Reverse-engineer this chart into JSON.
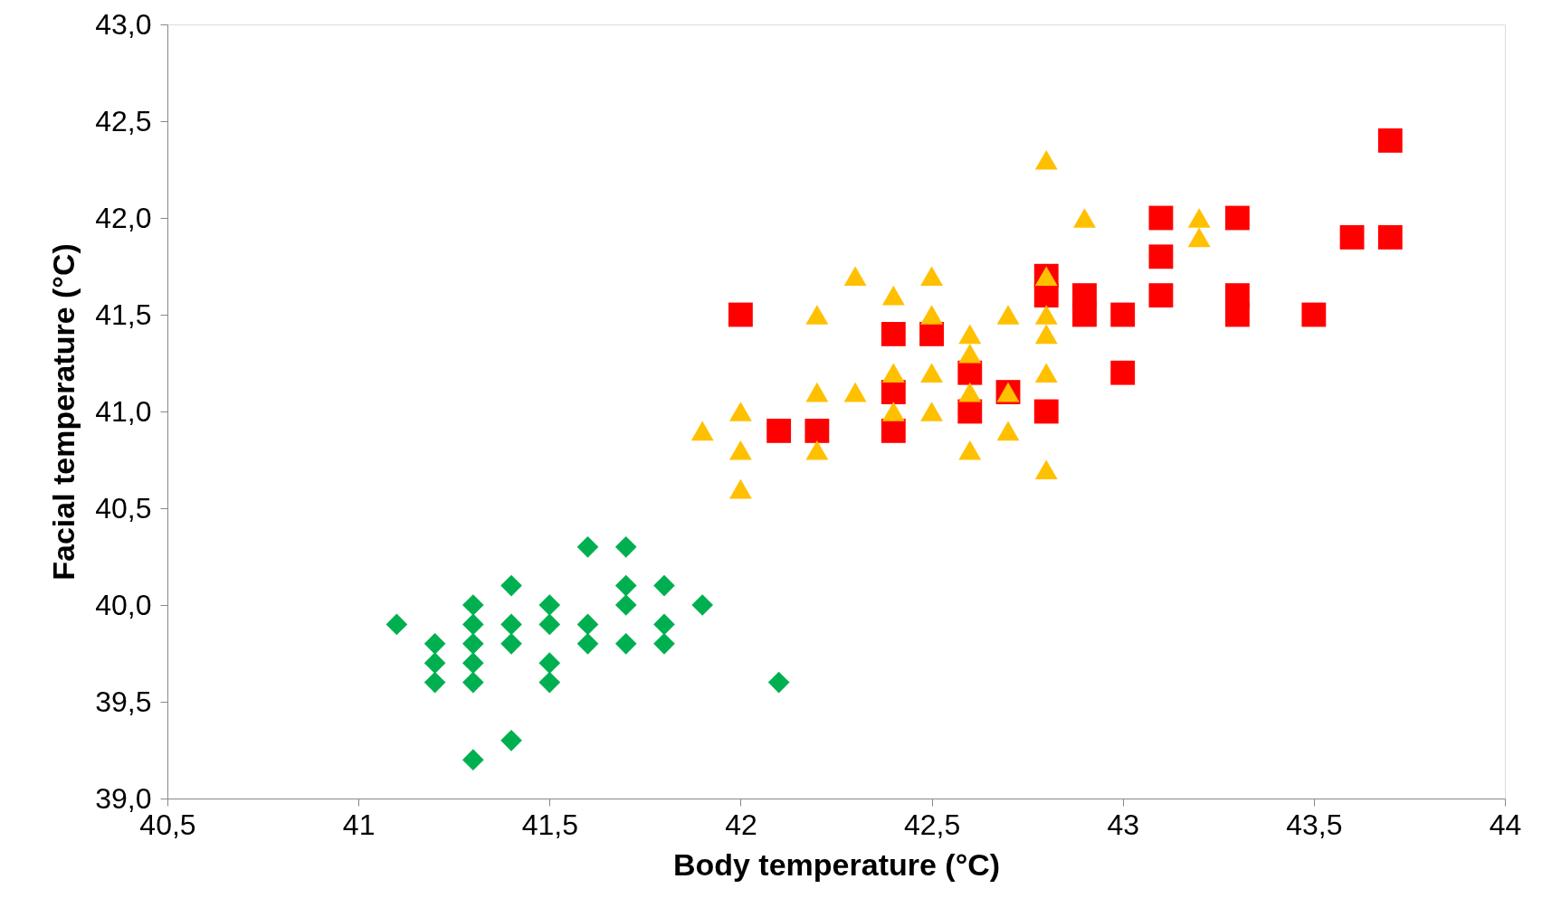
{
  "chart_data": {
    "type": "scatter",
    "xlabel": "Body temperature (°C)",
    "ylabel": "Facial temperature (°C)",
    "xlim": [
      40.5,
      44
    ],
    "ylim": [
      39.0,
      43.0
    ],
    "xticks": [
      {
        "value": 40.5,
        "label": "40,5"
      },
      41,
      {
        "value": 41.5,
        "label": "41,5"
      },
      42,
      {
        "value": 42.5,
        "label": "42,5"
      },
      43,
      {
        "value": 43.5,
        "label": "43,5"
      },
      44
    ],
    "yticks": [
      {
        "value": 39.0,
        "label": "39,0"
      },
      {
        "value": 39.5,
        "label": "39,5"
      },
      {
        "value": 40.0,
        "label": "40,0"
      },
      {
        "value": 40.5,
        "label": "40,5"
      },
      {
        "value": 41.0,
        "label": "41,0"
      },
      {
        "value": 41.5,
        "label": "41,5"
      },
      {
        "value": 42.0,
        "label": "42,0"
      },
      {
        "value": 42.5,
        "label": "42,5"
      },
      {
        "value": 43.0,
        "label": "43,0"
      }
    ],
    "grid": false,
    "series": [
      {
        "color": "#00b050",
        "marker": "diamond",
        "x": [
          41.1,
          41.2,
          41.2,
          41.2,
          41.3,
          41.3,
          41.3,
          41.3,
          41.3,
          41.3,
          41.4,
          41.4,
          41.4,
          41.4,
          41.5,
          41.5,
          41.5,
          41.5,
          41.6,
          41.6,
          41.6,
          41.7,
          41.7,
          41.7,
          41.7,
          41.8,
          41.8,
          41.8,
          41.9,
          42.1
        ],
        "values": [
          39.9,
          39.8,
          39.7,
          39.6,
          40.0,
          39.9,
          39.8,
          39.7,
          39.6,
          39.2,
          40.1,
          39.9,
          39.8,
          39.3,
          40.0,
          39.9,
          39.7,
          39.6,
          40.3,
          39.9,
          39.8,
          40.3,
          40.1,
          40.0,
          39.8,
          40.1,
          39.9,
          39.8,
          40.0,
          39.6
        ]
      },
      {
        "color": "#ff0000",
        "marker": "square",
        "x": [
          42.0,
          42.1,
          42.2,
          42.4,
          42.4,
          42.4,
          42.5,
          42.6,
          42.6,
          42.7,
          42.8,
          42.8,
          42.8,
          42.9,
          42.9,
          43.0,
          43.0,
          43.1,
          43.1,
          43.1,
          43.3,
          43.3,
          43.3,
          43.5,
          43.6,
          43.7,
          43.7
        ],
        "values": [
          41.5,
          40.9,
          40.9,
          41.4,
          41.1,
          40.9,
          41.4,
          41.2,
          41.0,
          41.1,
          41.7,
          41.6,
          41.0,
          41.6,
          41.5,
          41.5,
          41.2,
          42.0,
          41.8,
          41.6,
          42.0,
          41.6,
          41.5,
          41.5,
          41.9,
          42.4,
          41.9
        ]
      },
      {
        "color": "#ffc000",
        "marker": "triangle",
        "x": [
          41.9,
          42.0,
          42.0,
          42.0,
          42.2,
          42.2,
          42.2,
          42.3,
          42.3,
          42.4,
          42.4,
          42.4,
          42.5,
          42.5,
          42.5,
          42.5,
          42.6,
          42.6,
          42.6,
          42.6,
          42.7,
          42.7,
          42.7,
          42.8,
          42.8,
          42.8,
          42.8,
          42.8,
          42.8,
          42.9,
          43.2,
          43.2
        ],
        "values": [
          40.9,
          41.0,
          40.8,
          40.6,
          41.5,
          41.1,
          40.8,
          41.7,
          41.1,
          41.6,
          41.2,
          41.0,
          41.7,
          41.5,
          41.2,
          41.0,
          41.4,
          41.3,
          41.1,
          40.8,
          41.5,
          41.1,
          40.9,
          42.3,
          41.7,
          41.5,
          41.4,
          41.2,
          40.7,
          42.0,
          42.0,
          41.9
        ]
      }
    ]
  }
}
